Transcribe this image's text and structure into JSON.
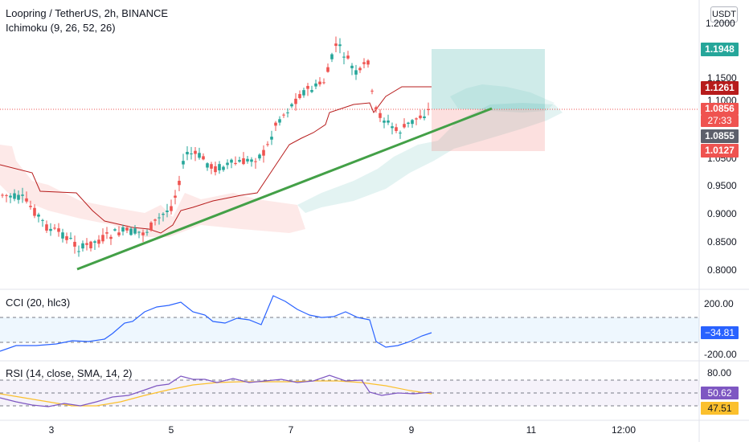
{
  "legend": {
    "symbol": "Loopring / TetherUS, 2h, BINANCE",
    "ichimoku": "Ichimoku (9, 26, 52, 26)",
    "cci": "CCI (20, hlc3)",
    "rsi": "RSI (14, close, SMA, 14, 2)"
  },
  "currency_button": "USDT",
  "price_axis": {
    "ticks": [
      "1.2000",
      "1.1500",
      "1.1000",
      "1.0500",
      "0.9500",
      "0.9000",
      "0.8500",
      "0.8000"
    ],
    "tags": {
      "target": "1.1948",
      "kijun": "1.1261",
      "last": "1.0856",
      "countdown": "27:33",
      "tenkan": "1.0855",
      "stop": "1.0127"
    }
  },
  "cci_axis": {
    "ticks": [
      "200.00",
      "-200.00"
    ],
    "value": "−34.81"
  },
  "rsi_axis": {
    "ticks": [
      "80.00"
    ],
    "value": "50.62",
    "ma_value": "47.51"
  },
  "time_axis": [
    "3",
    "5",
    "7",
    "9",
    "11",
    "12:00"
  ],
  "colors": {
    "up": "#26a69a",
    "down": "#ef5350",
    "kijun": "#b71c1c",
    "trendline": "#43a047",
    "cci": "#2962ff",
    "rsi": "#7e57c2",
    "rsi_ma": "#fbc02d",
    "last_price": "#ef5350"
  },
  "chart_data": {
    "type": "candlestick",
    "trendline": "rising support from about 0.80 to 1.09",
    "position": {
      "entry": 1.0856,
      "target": 1.1948,
      "stop": 1.0127
    }
  }
}
